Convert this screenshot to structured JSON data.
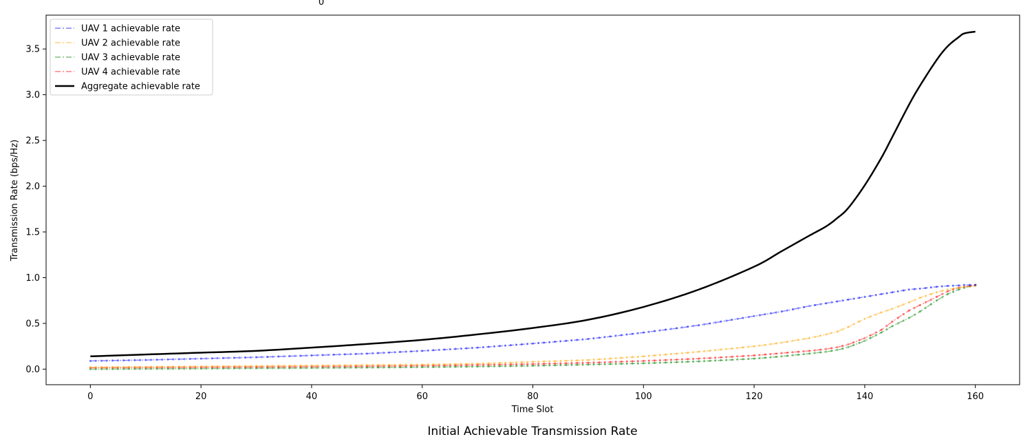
{
  "top_stray_label": "0",
  "chart_data": {
    "type": "line",
    "title": "Initial Achievable Transmission Rate",
    "xlabel": "Time Slot",
    "ylabel": "Transmission Rate (bps/Hz)",
    "xlim": [
      -8,
      168
    ],
    "ylim": [
      -0.17,
      3.87
    ],
    "xticks": [
      0,
      20,
      40,
      60,
      80,
      100,
      120,
      140,
      160
    ],
    "yticks": [
      0.0,
      0.5,
      1.0,
      1.5,
      2.0,
      2.5,
      3.0,
      3.5
    ],
    "ytick_labels": [
      "0.0",
      "0.5",
      "1.0",
      "1.5",
      "2.0",
      "2.5",
      "3.0",
      "3.5"
    ],
    "grid": false,
    "legend_position": "top-left",
    "x": [
      0,
      10,
      20,
      30,
      40,
      50,
      60,
      70,
      80,
      90,
      100,
      110,
      120,
      125,
      130,
      133,
      135,
      137,
      140,
      143,
      145,
      148,
      150,
      153,
      155,
      157,
      158,
      160
    ],
    "series": [
      {
        "name": "UAV 1 achievable rate",
        "color": "#0000ff",
        "style": "dashdot-markers",
        "values": [
          0.09,
          0.1,
          0.115,
          0.13,
          0.15,
          0.17,
          0.2,
          0.235,
          0.28,
          0.33,
          0.4,
          0.48,
          0.58,
          0.63,
          0.69,
          0.72,
          0.74,
          0.76,
          0.79,
          0.82,
          0.84,
          0.87,
          0.88,
          0.9,
          0.91,
          0.915,
          0.92,
          0.92
        ]
      },
      {
        "name": "UAV 2 achievable rate",
        "color": "#ffa500",
        "style": "dashdot-markers",
        "values": [
          0.02,
          0.025,
          0.03,
          0.035,
          0.04,
          0.045,
          0.05,
          0.06,
          0.08,
          0.1,
          0.14,
          0.19,
          0.25,
          0.29,
          0.34,
          0.38,
          0.41,
          0.46,
          0.55,
          0.62,
          0.66,
          0.73,
          0.78,
          0.84,
          0.87,
          0.89,
          0.9,
          0.91
        ]
      },
      {
        "name": "UAV 3 achievable rate",
        "color": "#008000",
        "style": "dashdot-markers",
        "values": [
          0.0,
          0.003,
          0.006,
          0.01,
          0.013,
          0.017,
          0.022,
          0.028,
          0.037,
          0.05,
          0.064,
          0.085,
          0.115,
          0.14,
          0.17,
          0.19,
          0.21,
          0.24,
          0.31,
          0.4,
          0.47,
          0.56,
          0.63,
          0.75,
          0.82,
          0.87,
          0.89,
          0.92
        ]
      },
      {
        "name": "UAV 4 achievable rate",
        "color": "#ff0000",
        "style": "dashdot-markers",
        "values": [
          0.015,
          0.018,
          0.021,
          0.024,
          0.028,
          0.032,
          0.038,
          0.046,
          0.056,
          0.07,
          0.09,
          0.115,
          0.15,
          0.175,
          0.2,
          0.22,
          0.24,
          0.27,
          0.34,
          0.43,
          0.52,
          0.64,
          0.7,
          0.79,
          0.85,
          0.89,
          0.9,
          0.92
        ]
      },
      {
        "name": "Aggregate achievable rate",
        "color": "#000000",
        "style": "solid",
        "values": [
          0.14,
          0.16,
          0.18,
          0.2,
          0.235,
          0.275,
          0.32,
          0.38,
          0.45,
          0.54,
          0.68,
          0.87,
          1.12,
          1.29,
          1.46,
          1.56,
          1.65,
          1.76,
          2.01,
          2.31,
          2.54,
          2.89,
          3.1,
          3.38,
          3.53,
          3.63,
          3.67,
          3.69
        ]
      }
    ]
  }
}
